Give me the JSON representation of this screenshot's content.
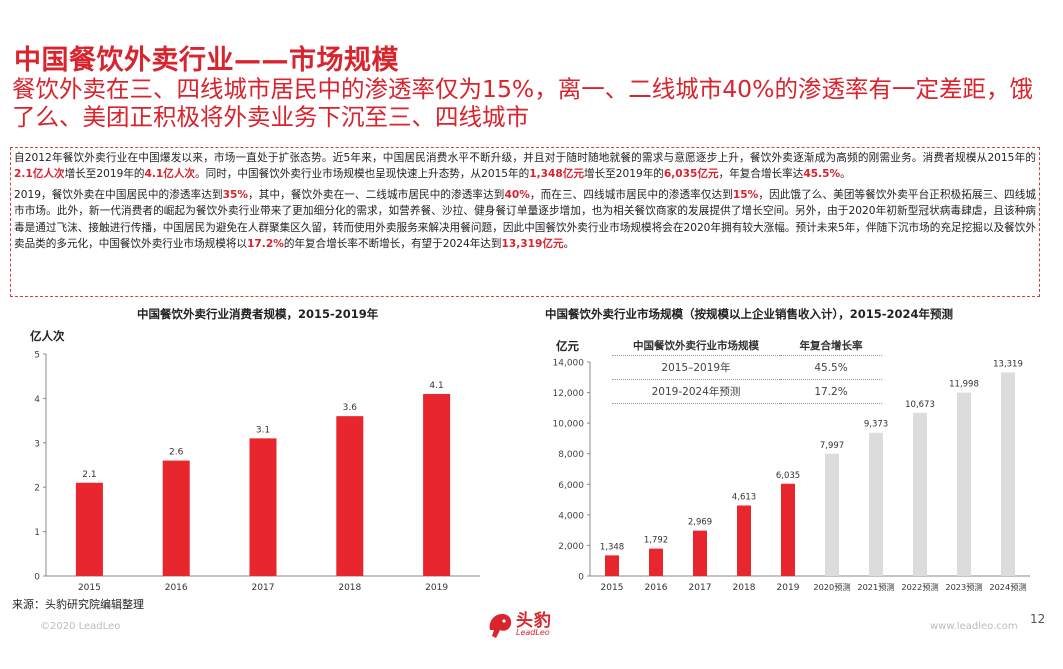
{
  "header": {
    "title": "中国餐饮外卖行业——市场规模",
    "subtitle": "餐饮外卖在三、四线城市居民中的渗透率仅为15%，离一、二线城市40%的渗透率有一定差距，饿了么、美团正积极将外卖业务下沉至三、四线城市"
  },
  "body": {
    "p1": [
      {
        "t": "自2012年餐饮外卖行业在中国爆发以来，市场一直处于扩张态势。近5年来，中国居民消费水平不断升级，并且对于随时随地就餐的需求与意愿逐步上升，餐饮外卖逐渐成为高频的刚需业务。消费者规模从2015年的"
      },
      {
        "t": "2.1亿人次",
        "h": true
      },
      {
        "t": "增长至2019年的"
      },
      {
        "t": "4.1亿人次",
        "h": true
      },
      {
        "t": "。同时，中国餐饮外卖行业市场规模也呈现快速上升态势，从2015年的"
      },
      {
        "t": "1,348亿元",
        "h": true
      },
      {
        "t": "增长至2019年的"
      },
      {
        "t": "6,035亿元",
        "h": true
      },
      {
        "t": "，年复合增长率达"
      },
      {
        "t": "45.5%",
        "h": true
      },
      {
        "t": "。"
      }
    ],
    "p2": [
      {
        "t": "2019，餐饮外卖在中国居民中的渗透率达到"
      },
      {
        "t": "35%",
        "h": true
      },
      {
        "t": "，其中，餐饮外卖在一、二线城市居民中的渗透率达到"
      },
      {
        "t": "40%",
        "h": true
      },
      {
        "t": "，而在三、四线城市居民中的渗透率仅达到"
      },
      {
        "t": "15%",
        "h": true
      },
      {
        "t": "，因此饿了么、美团等餐饮外卖平台正积极拓展三、四线城市市场。此外，新一代消费者的崛起为餐饮外卖行业带来了更加细分化的需求，如营养餐、沙拉、健身餐订单量逐步增加，也为相关餐饮商家的发展提供了增长空间。另外，由于2020年初新型冠状病毒肆虐，且该种病毒是通过飞沫、接触进行传播，中国居民为避免在人群聚集区久留，转而使用外卖服务来解决用餐问题，因此中国餐饮外卖行业市场规模将会在2020年拥有较大涨幅。预计未来5年，伴随下沉市场的充足挖掘以及餐饮外卖品类的多元化，中国餐饮外卖行业市场规模将以"
      },
      {
        "t": "17.2%",
        "h": true
      },
      {
        "t": "的年复合增长率不断增长，有望于2024年达到"
      },
      {
        "t": "13,319亿元",
        "h": true
      },
      {
        "t": "。"
      }
    ]
  },
  "chart_data": [
    {
      "type": "bar",
      "title": "中国餐饮外卖行业消费者规模，2015-2019年",
      "ylabel": "亿人次",
      "categories": [
        "2015",
        "2016",
        "2017",
        "2018",
        "2019"
      ],
      "values": [
        2.1,
        2.6,
        3.1,
        3.6,
        4.1
      ],
      "ylim": [
        0,
        5
      ],
      "yticks": [
        0,
        1,
        2,
        3,
        4,
        5
      ],
      "colors": {
        "bar": "#e8262d"
      }
    },
    {
      "type": "bar",
      "title": "中国餐饮外卖行业市场规模（按规模以上企业销售收入计），2015-2024年预测",
      "ylabel": "亿元",
      "categories": [
        "2015",
        "2016",
        "2017",
        "2018",
        "2019",
        "2020预测",
        "2021预测",
        "2022预测",
        "2023预测",
        "2024预测"
      ],
      "values": [
        1348,
        1792,
        2969,
        4613,
        6035,
        7997,
        9373,
        10673,
        11998,
        13319
      ],
      "labels": [
        "1,348",
        "1,792",
        "2,969",
        "4,613",
        "6,035",
        "7,997",
        "9,373",
        "10,673",
        "11,998",
        "13,319"
      ],
      "ylim": [
        0,
        14000
      ],
      "yticks": [
        "0",
        "2,000",
        "4,000",
        "6,000",
        "8,000",
        "10,000",
        "12,000",
        "14,000"
      ],
      "colors": {
        "actual": "#e8262d",
        "forecast": "#dcdcdc"
      },
      "table": {
        "headers": [
          "中国餐饮外卖行业市场规模",
          "年复合增长率"
        ],
        "rows": [
          [
            "2015–2019年",
            "45.5%"
          ],
          [
            "2019-2024年预测",
            "17.2%"
          ]
        ]
      }
    }
  ],
  "footer": {
    "source": "来源：头豹研究院编辑整理",
    "copyright": "©2020 LeadLeo",
    "site": "www.leadleo.com",
    "page": "12",
    "logo_text": "头豹",
    "logo_sub": "LeadLeo"
  }
}
